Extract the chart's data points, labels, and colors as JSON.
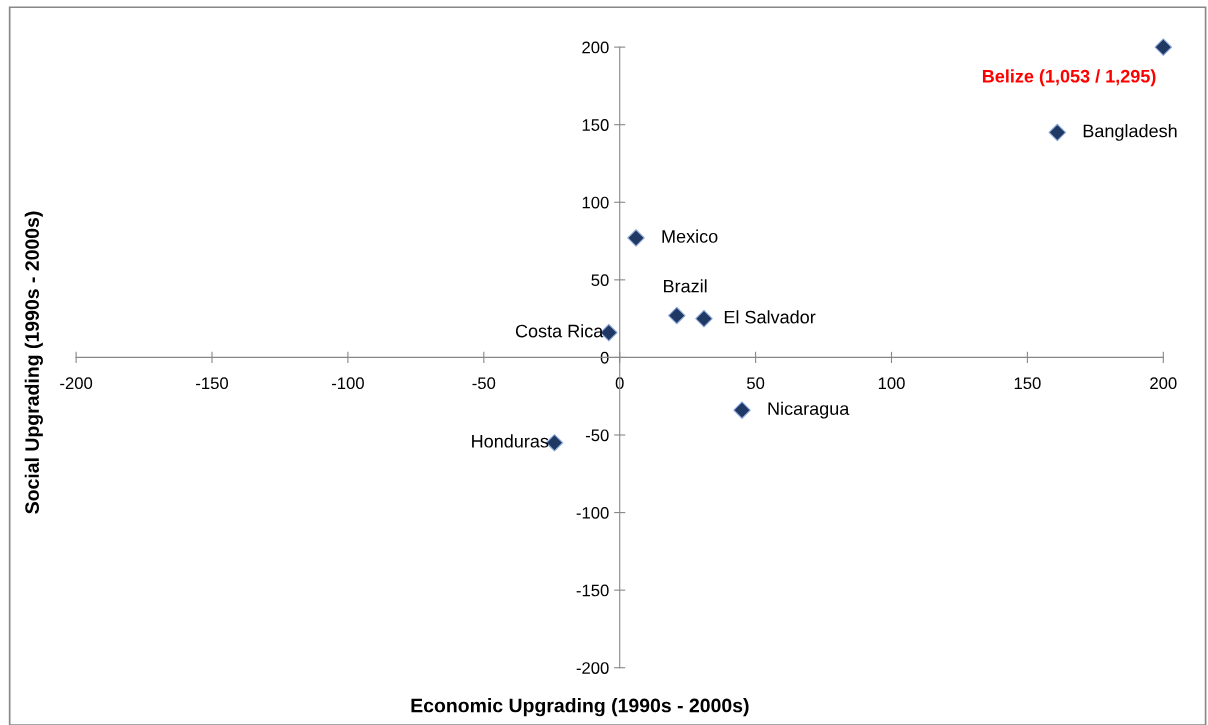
{
  "chart_data": {
    "type": "scatter",
    "xlabel": "Economic Upgrading (1990s - 2000s)",
    "ylabel": "Social Upgrading (1990s - 2000s)",
    "series": [
      {
        "color": "#1f3864",
        "x": [
          200,
          161,
          6,
          21,
          -4,
          31,
          -24,
          45
        ],
        "values": [
          200,
          145,
          77,
          27,
          16,
          25,
          -55,
          -34
        ]
      }
    ],
    "xlim": [
      -200,
      200
    ],
    "xticks": [
      -200,
      -150,
      -100,
      -50,
      0,
      50,
      100,
      150,
      200
    ],
    "ylim": [
      -200,
      200
    ],
    "yticks": [
      -200,
      -150,
      -100,
      -50,
      0,
      50,
      100,
      150,
      200
    ],
    "marker": "diamond",
    "grid": false,
    "legend": false,
    "annotations": [
      {
        "text": "Belize (1,053 / 1,295)",
        "x": 200,
        "y": 200
      },
      {
        "text": "Bangladesh",
        "x": 161,
        "y": 145
      },
      {
        "text": "Mexico",
        "x": 6,
        "y": 77
      },
      {
        "text": "Brazil",
        "x": 21,
        "y": 27
      },
      {
        "text": "Costa Rica",
        "x": -4,
        "y": 16
      },
      {
        "text": "El Salvador",
        "x": 31,
        "y": 25
      },
      {
        "text": "Honduras",
        "x": -24,
        "y": -55
      },
      {
        "text": "Nicaragua",
        "x": 45,
        "y": -34
      }
    ]
  }
}
